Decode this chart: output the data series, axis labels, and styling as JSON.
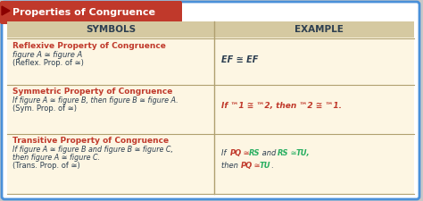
{
  "title": "Properties of Congruence",
  "title_bg": "#c0392b",
  "title_text_color": "#ffffff",
  "header_symbols": "SYMBOLS",
  "header_example": "EXAMPLE",
  "header_text_color": "#2c3e50",
  "header_bg": "#d5c9a1",
  "table_bg": "#fdf6e3",
  "border_color": "#4a90d9",
  "divider_color": "#b0a070",
  "row_data": [
    {
      "property_title": "Reflexive Property of Congruence",
      "property_title_color": "#c0392b"
    },
    {
      "property_title": "Symmetric Property of Congruence",
      "property_title_color": "#c0392b",
      "example_color": "#c0392b"
    },
    {
      "property_title": "Transitive Property of Congruence",
      "property_title_color": "#c0392b"
    }
  ],
  "red": "#c0392b",
  "green": "#27ae60",
  "dark": "#2c3e50",
  "figsize": [
    4.74,
    2.25
  ],
  "dpi": 100
}
